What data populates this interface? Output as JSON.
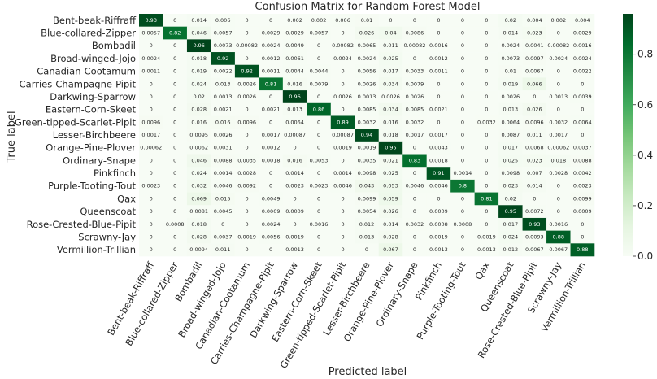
{
  "chart_data": {
    "type": "heatmap",
    "title": "Confusion Matrix for Random Forest Model",
    "xlabel": "Predicted label",
    "ylabel": "True label",
    "labels": [
      "Bent-beak-Riffraff",
      "Blue-collared-Zipper",
      "Bombadil",
      "Broad-winged-Jojo",
      "Canadian-Cootamum",
      "Carries-Champagne-Pipit",
      "Darkwing-Sparrow",
      "Eastern-Corn-Skeet",
      "Green-tipped-Scarlet-Pipit",
      "Lesser-Birchbeere",
      "Orange-Pine-Plover",
      "Ordinary-Snape",
      "Pinkfinch",
      "Purple-Tooting-Tout",
      "Qax",
      "Queenscoat",
      "Rose-Crested-Blue-Pipit",
      "Scrawny-Jay",
      "Vermillion-Trillian"
    ],
    "matrix": [
      [
        "0.93",
        "0",
        "0.014",
        "0.006",
        "0",
        "0",
        "0.002",
        "0.002",
        "0.006",
        "0.01",
        "0",
        "0",
        "0",
        "0",
        "0",
        "0.02",
        "0.004",
        "0.002",
        "0.004"
      ],
      [
        "0.0057",
        "0.82",
        "0.046",
        "0.0057",
        "0",
        "0.0029",
        "0.0029",
        "0.0057",
        "0",
        "0.026",
        "0.04",
        "0.0086",
        "0",
        "0",
        "0",
        "0.014",
        "0.023",
        "0",
        "0.0029"
      ],
      [
        "0",
        "0",
        "0.96",
        "0.0073",
        "0.00082",
        "0.0024",
        "0.0049",
        "0",
        "0.00082",
        "0.0065",
        "0.011",
        "0.00082",
        "0.0016",
        "0",
        "0",
        "0.0024",
        "0.0041",
        "0.00082",
        "0.0016"
      ],
      [
        "0.0024",
        "0",
        "0.018",
        "0.92",
        "0",
        "0.0012",
        "0.0061",
        "0",
        "0.0024",
        "0.0024",
        "0.025",
        "0",
        "0.0012",
        "0",
        "0",
        "0.0073",
        "0.0097",
        "0.0024",
        "0.0024"
      ],
      [
        "0.0011",
        "0",
        "0.019",
        "0.0022",
        "0.92",
        "0.0011",
        "0.0044",
        "0.0044",
        "0",
        "0.0056",
        "0.017",
        "0.0033",
        "0.0011",
        "0",
        "0",
        "0.01",
        "0.0067",
        "0",
        "0.0022"
      ],
      [
        "0",
        "0",
        "0.024",
        "0.013",
        "0.0026",
        "0.81",
        "0.016",
        "0.0079",
        "0",
        "0.0026",
        "0.034",
        "0.0079",
        "0",
        "0",
        "0",
        "0.019",
        "0.066",
        "0",
        "0"
      ],
      [
        "0",
        "0",
        "0.02",
        "0.0013",
        "0.0026",
        "0",
        "0.96",
        "0",
        "0.0026",
        "0.0013",
        "0.0026",
        "0.0026",
        "0",
        "0",
        "0",
        "0.0026",
        "0",
        "0.0013",
        "0.0039"
      ],
      [
        "0",
        "0",
        "0.028",
        "0.0021",
        "0",
        "0.0021",
        "0.013",
        "0.86",
        "0",
        "0.0085",
        "0.034",
        "0.0085",
        "0.0021",
        "0",
        "0",
        "0.013",
        "0.026",
        "0",
        "0"
      ],
      [
        "0.0096",
        "0",
        "0.016",
        "0.016",
        "0.0096",
        "0",
        "0.0064",
        "0",
        "0.89",
        "0.0032",
        "0.016",
        "0.0032",
        "0",
        "0",
        "0.0032",
        "0.0064",
        "0.0096",
        "0.0032",
        "0.0064"
      ],
      [
        "0.0017",
        "0",
        "0.0095",
        "0.0026",
        "0",
        "0.0017",
        "0.00087",
        "0",
        "0.00087",
        "0.94",
        "0.018",
        "0.0017",
        "0.0017",
        "0",
        "0",
        "0.0087",
        "0.011",
        "0.0017",
        "0"
      ],
      [
        "0.00062",
        "0",
        "0.0062",
        "0.0031",
        "0",
        "0.0012",
        "0",
        "0",
        "0.0019",
        "0.0019",
        "0.95",
        "0",
        "0.0043",
        "0",
        "0",
        "0.017",
        "0.0068",
        "0.00062",
        "0.0037"
      ],
      [
        "0",
        "0",
        "0.046",
        "0.0088",
        "0.0035",
        "0.0018",
        "0.016",
        "0.0053",
        "0",
        "0.0035",
        "0.021",
        "0.83",
        "0.0018",
        "0",
        "0",
        "0.025",
        "0.023",
        "0.018",
        "0.0088"
      ],
      [
        "0",
        "0",
        "0.024",
        "0.0014",
        "0.0028",
        "0",
        "0.0014",
        "0",
        "0.0014",
        "0.0098",
        "0.025",
        "0",
        "0.91",
        "0.0014",
        "0",
        "0.0098",
        "0.007",
        "0.0028",
        "0.0042"
      ],
      [
        "0.0023",
        "0",
        "0.032",
        "0.0046",
        "0.0092",
        "0",
        "0.0023",
        "0.0023",
        "0.0046",
        "0.043",
        "0.053",
        "0.0046",
        "0.0046",
        "0.8",
        "0",
        "0.023",
        "0.014",
        "0",
        "0.0023"
      ],
      [
        "0",
        "0",
        "0.069",
        "0.015",
        "0",
        "0.0049",
        "0",
        "0",
        "0",
        "0.0099",
        "0.059",
        "0",
        "0",
        "0",
        "0.81",
        "0.02",
        "0",
        "0",
        "0.0099"
      ],
      [
        "0",
        "0",
        "0.0081",
        "0.0045",
        "0",
        "0.0009",
        "0.0009",
        "0",
        "0",
        "0.0054",
        "0.026",
        "0",
        "0.0009",
        "0",
        "0",
        "0.95",
        "0.0072",
        "0",
        "0.0009"
      ],
      [
        "0",
        "0.0008",
        "0.018",
        "0",
        "0",
        "0.0024",
        "0",
        "0.0016",
        "0",
        "0.012",
        "0.014",
        "0.0032",
        "0.0008",
        "0.0008",
        "0",
        "0.017",
        "0.93",
        "0.0016",
        "0"
      ],
      [
        "0",
        "0",
        "0.028",
        "0.0037",
        "0.0019",
        "0.0056",
        "0.0019",
        "0",
        "0",
        "0.013",
        "0.028",
        "0",
        "0.0019",
        "0",
        "0.0019",
        "0.024",
        "0.0093",
        "0.88",
        "0"
      ],
      [
        "0",
        "0",
        "0.0094",
        "0.011",
        "0",
        "0",
        "0.0013",
        "0",
        "0",
        "0",
        "0.067",
        "0",
        "0.0013",
        "0",
        "0.0013",
        "0.012",
        "0.0067",
        "0.0067",
        "0.88"
      ]
    ],
    "vmin": 0,
    "vmax": 0.96,
    "colorbar_ticks": [
      "0.0",
      "0.2",
      "0.4",
      "0.6",
      "0.8"
    ],
    "colormap": "Greens"
  }
}
